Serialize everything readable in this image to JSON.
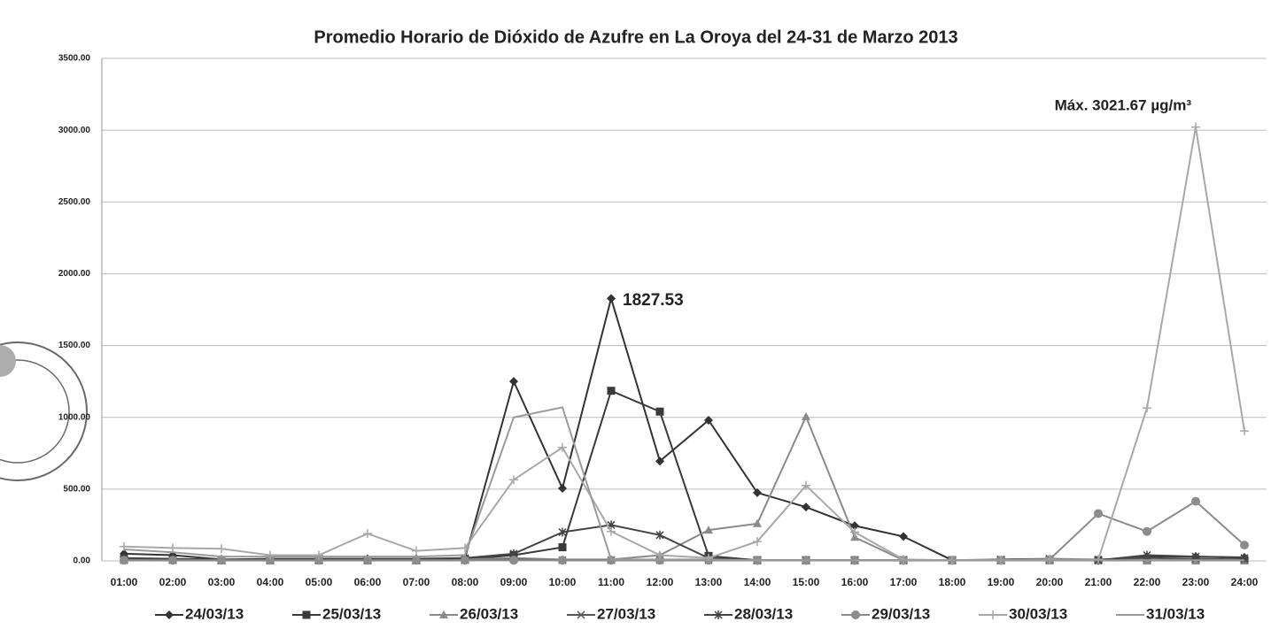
{
  "chart_data": {
    "type": "line",
    "title": "Promedio Horario de Dióxido de Azufre en  La Oroya del 24-31 de Marzo 2013",
    "categories": [
      "01:00",
      "02:00",
      "03:00",
      "04:00",
      "05:00",
      "06:00",
      "07:00",
      "08:00",
      "09:00",
      "10:00",
      "11:00",
      "12:00",
      "13:00",
      "14:00",
      "15:00",
      "16:00",
      "17:00",
      "18:00",
      "19:00",
      "20:00",
      "21:00",
      "22:00",
      "23:00",
      "24:00"
    ],
    "series": [
      {
        "name": "24/03/13",
        "color": "#333333",
        "marker": "diamond",
        "values": [
          50,
          40,
          10,
          15,
          15,
          15,
          15,
          20,
          1250,
          505,
          1827.53,
          695,
          980,
          475,
          375,
          245,
          170,
          5,
          5,
          10,
          5,
          30,
          30,
          25
        ]
      },
      {
        "name": "25/03/13",
        "color": "#3a3a3a",
        "marker": "square",
        "values": [
          10,
          10,
          5,
          5,
          5,
          5,
          5,
          10,
          40,
          95,
          1185,
          1040,
          35,
          5,
          5,
          5,
          5,
          5,
          5,
          5,
          5,
          5,
          5,
          5
        ]
      },
      {
        "name": "26/03/13",
        "color": "#8a8a8a",
        "marker": "triangle",
        "values": [
          15,
          10,
          5,
          5,
          10,
          5,
          5,
          10,
          20,
          10,
          10,
          40,
          215,
          260,
          1005,
          165,
          5,
          5,
          5,
          5,
          5,
          5,
          5,
          5
        ]
      },
      {
        "name": "27/03/13",
        "color": "#555555",
        "marker": "cross",
        "values": [
          5,
          5,
          5,
          5,
          5,
          5,
          5,
          5,
          10,
          5,
          5,
          5,
          5,
          5,
          5,
          5,
          5,
          5,
          10,
          15,
          10,
          20,
          15,
          10
        ]
      },
      {
        "name": "28/03/13",
        "color": "#444444",
        "marker": "star",
        "values": [
          20,
          15,
          10,
          10,
          10,
          10,
          10,
          20,
          50,
          200,
          250,
          180,
          20,
          5,
          5,
          5,
          5,
          5,
          5,
          10,
          5,
          40,
          30,
          20
        ]
      },
      {
        "name": "29/03/13",
        "color": "#8c8c8c",
        "marker": "circle",
        "values": [
          5,
          5,
          5,
          5,
          5,
          5,
          5,
          5,
          5,
          5,
          5,
          5,
          5,
          5,
          5,
          5,
          5,
          5,
          5,
          10,
          330,
          205,
          415,
          110
        ]
      },
      {
        "name": "30/03/13",
        "color": "#a8a8a8",
        "marker": "plus",
        "values": [
          100,
          90,
          85,
          40,
          40,
          190,
          70,
          90,
          565,
          790,
          205,
          40,
          20,
          135,
          525,
          200,
          10,
          5,
          5,
          10,
          10,
          1065,
          3021.67,
          905
        ]
      },
      {
        "name": "31/03/13",
        "color": "#9a9a9a",
        "marker": "none",
        "values": [
          80,
          60,
          30,
          30,
          30,
          30,
          30,
          40,
          1000,
          1070,
          10,
          10,
          10,
          5,
          5,
          5,
          5,
          5,
          5,
          5,
          5,
          5,
          5,
          5
        ]
      }
    ],
    "ylim": [
      0,
      3500
    ],
    "yticks": [
      {
        "value": 0,
        "label": "0.00"
      },
      {
        "value": 500,
        "label": "500.00"
      },
      {
        "value": 1000,
        "label": "1000.00"
      },
      {
        "value": 1500,
        "label": "1500.00"
      },
      {
        "value": 2000,
        "label": "2000.00"
      },
      {
        "value": 2500,
        "label": "2500.00"
      },
      {
        "value": 3000,
        "label": "3000.00"
      },
      {
        "value": 3500,
        "label": "3500.00"
      }
    ],
    "grid": true,
    "legend": "bottom",
    "annotations": [
      "1827.53",
      "Máx. 3021.67 µg/m³"
    ]
  }
}
